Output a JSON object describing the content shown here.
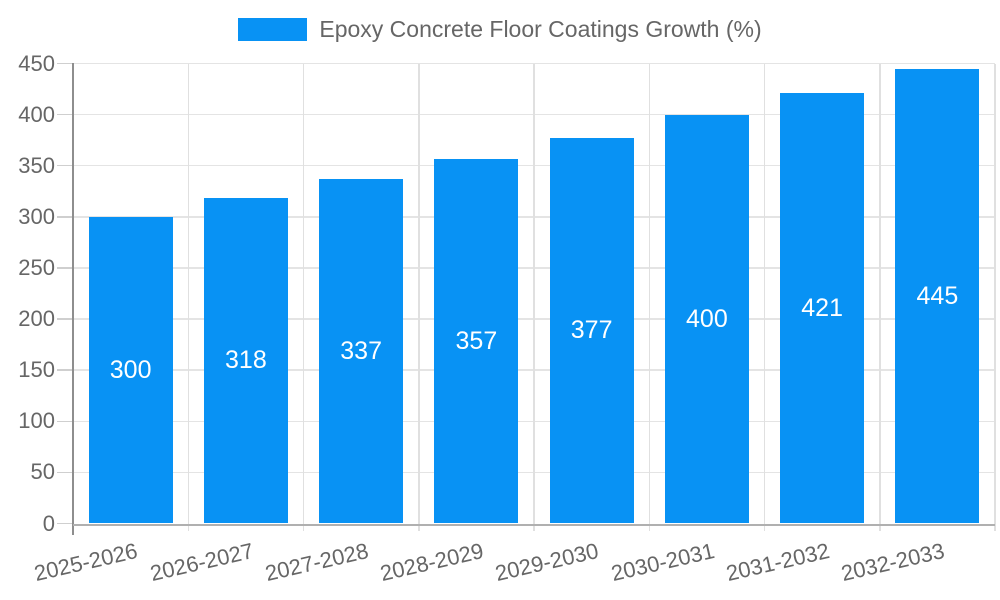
{
  "legend": {
    "label": "Epoxy Concrete Floor Coatings Growth (%)"
  },
  "chart_data": {
    "type": "bar",
    "title": "Epoxy Concrete Floor Coatings Growth (%)",
    "categories": [
      "2025-2026",
      "2026-2027",
      "2027-2028",
      "2028-2029",
      "2029-2030",
      "2030-2031",
      "2031-2032",
      "2032-2033"
    ],
    "series": [
      {
        "name": "Epoxy Concrete Floor Coatings Growth (%)",
        "values": [
          300,
          318,
          337,
          357,
          377,
          400,
          421,
          445
        ]
      }
    ],
    "value_labels": [
      "300",
      "318",
      "337",
      "357",
      "377",
      "400",
      "421",
      "445"
    ],
    "yticks": [
      0,
      50,
      100,
      150,
      200,
      250,
      300,
      350,
      400,
      450
    ],
    "ylim": [
      0,
      450
    ],
    "xlabel": "",
    "ylabel": "",
    "grid": true,
    "legend_position": "top-center",
    "bar_color": "#0892F4",
    "value_label_color": "#FFFFFF",
    "axis_text_color": "#666666",
    "grid_color": "#e4e4e4",
    "x_label_rotation_deg": -13
  }
}
